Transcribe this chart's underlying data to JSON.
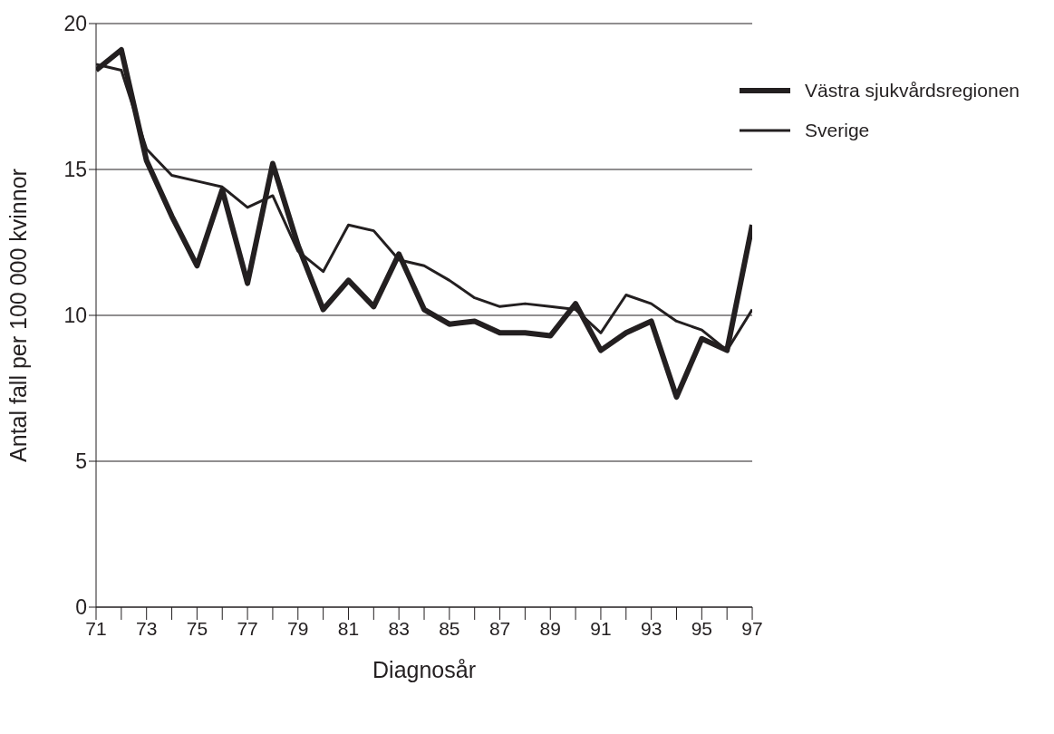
{
  "chart_data": {
    "type": "line",
    "xlabel": "Diagnosår",
    "ylabel": "Antal fall per 100 000 kvinnor",
    "x": [
      71,
      72,
      73,
      74,
      75,
      76,
      77,
      78,
      79,
      80,
      81,
      82,
      83,
      84,
      85,
      86,
      87,
      88,
      89,
      90,
      91,
      92,
      93,
      94,
      95,
      96,
      97
    ],
    "series": [
      {
        "name": "Västra sjukvårdsregionen",
        "color": "#231f20",
        "values": [
          18.4,
          19.1,
          15.3,
          13.4,
          11.7,
          14.3,
          11.1,
          15.2,
          12.4,
          10.2,
          11.2,
          10.3,
          12.1,
          10.2,
          9.7,
          9.8,
          9.4,
          9.4,
          9.3,
          10.4,
          8.8,
          9.4,
          9.8,
          7.2,
          9.2,
          8.8,
          13.1
        ]
      },
      {
        "name": "Sverige",
        "color": "#231f20",
        "values": [
          18.6,
          18.4,
          15.7,
          14.8,
          14.6,
          14.4,
          13.7,
          14.1,
          12.2,
          11.5,
          13.1,
          12.9,
          11.9,
          11.7,
          11.2,
          10.6,
          10.3,
          10.4,
          10.3,
          10.2,
          9.4,
          10.7,
          10.4,
          9.8,
          9.5,
          8.8,
          10.2
        ]
      }
    ],
    "xlim": [
      71,
      97
    ],
    "xticks": [
      71,
      {
        "value": 72,
        "label": null
      },
      73,
      {
        "value": 74,
        "label": null
      },
      75,
      {
        "value": 76,
        "label": null
      },
      77,
      {
        "value": 78,
        "label": null
      },
      79,
      {
        "value": 80,
        "label": null
      },
      81,
      {
        "value": 82,
        "label": null
      },
      83,
      {
        "value": 84,
        "label": null
      },
      85,
      {
        "value": 86,
        "label": null
      },
      87,
      {
        "value": 88,
        "label": null
      },
      89,
      {
        "value": 90,
        "label": null
      },
      91,
      {
        "value": 92,
        "label": null
      },
      93,
      {
        "value": 94,
        "label": null
      },
      95,
      {
        "value": 96,
        "label": null
      },
      97
    ],
    "ylim": [
      0,
      20
    ],
    "yticks": [
      0,
      5,
      10,
      15,
      20
    ],
    "grid": "y",
    "legend": "top right",
    "marker": "none",
    "line_style": "solid"
  }
}
